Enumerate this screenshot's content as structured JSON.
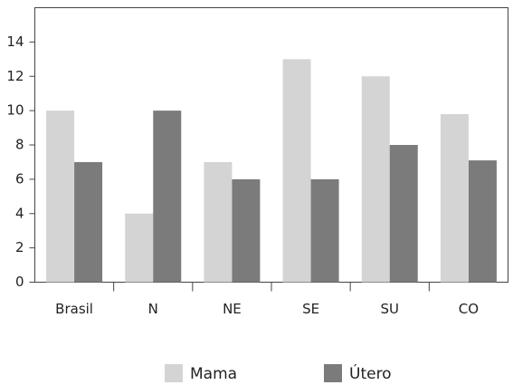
{
  "chart_data": {
    "type": "bar",
    "categories": [
      "Brasil",
      "N",
      "NE",
      "SE",
      "SU",
      "CO"
    ],
    "series": [
      {
        "name": "Mama",
        "color": "#d4d4d4",
        "values": [
          10,
          4,
          7,
          13,
          12,
          9.8
        ]
      },
      {
        "name": "Útero",
        "color": "#7b7b7b",
        "values": [
          7,
          10,
          6,
          6,
          8,
          7.1
        ]
      }
    ],
    "ylim": [
      0,
      16
    ],
    "yticks": [
      0,
      2,
      4,
      6,
      8,
      10,
      12,
      14
    ],
    "grid": false,
    "legend": "bottom"
  }
}
